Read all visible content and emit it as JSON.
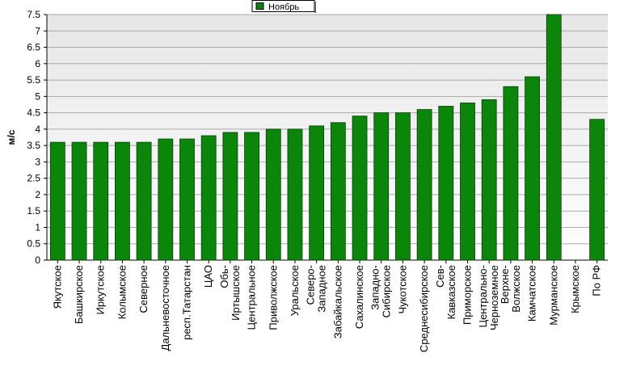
{
  "chart_data": {
    "type": "bar",
    "y_label": "м/с",
    "series": [
      {
        "name": "Ноябрь",
        "color": "#0b860b",
        "values": [
          3.6,
          3.6,
          3.6,
          3.6,
          3.6,
          3.7,
          3.7,
          3.8,
          3.9,
          3.9,
          4.0,
          4.0,
          4.1,
          4.2,
          4.4,
          4.5,
          4.5,
          4.6,
          4.7,
          4.8,
          4.9,
          5.3,
          5.6,
          7.5,
          null,
          4.3
        ]
      }
    ],
    "categories": [
      "Якутское",
      "Башкирское",
      "Иркутское",
      "Колымское",
      "Северное",
      "Дальневосточное",
      "респ.Татарстан",
      "ЦАО",
      "Обь-\nИртышское",
      "Центральное",
      "Приволжское",
      "Уральское",
      "Северо-\nЗападное",
      "Забайкальское",
      "Сахалинское",
      "Западно-\nСибирское",
      "Чукотское",
      "Среднесибирское",
      "Сев-\nКавказское",
      "Приморское",
      "Центрально-\nЧерноземное",
      "Верхне-\nВолжское",
      "Камчатское",
      "Мурманское",
      "Крымское",
      "По РФ"
    ],
    "ylim": [
      0,
      7.5
    ],
    "yticks": [
      0,
      0.5,
      1,
      1.5,
      2,
      2.5,
      3,
      3.5,
      4,
      4.5,
      5,
      5.5,
      6,
      6.5,
      7,
      7.5
    ],
    "grid": true,
    "legend": "top"
  }
}
